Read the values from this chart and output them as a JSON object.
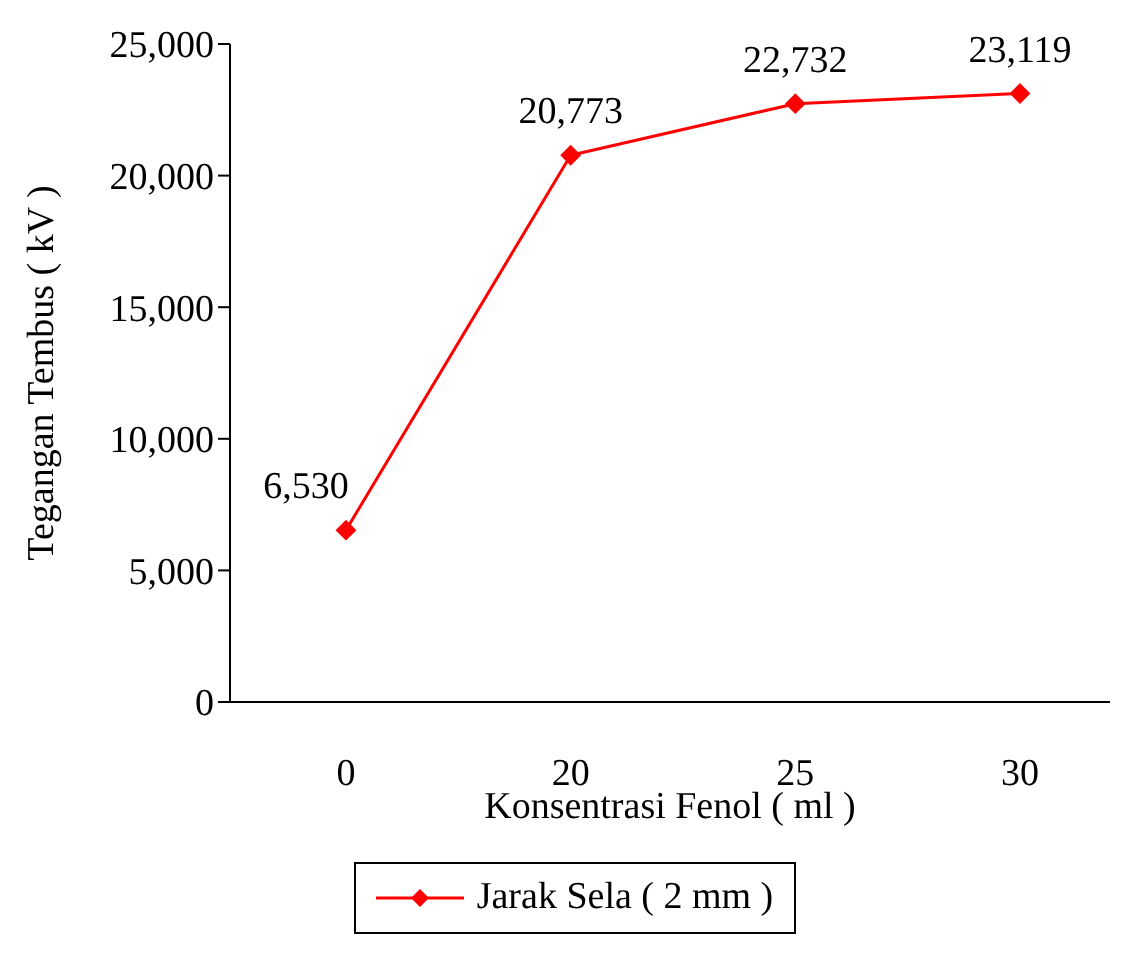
{
  "chart_data": {
    "type": "line",
    "xlabel": "Konsentrasi Fenol ( ml )",
    "ylabel": "Tegangan Tembus ( kV )",
    "categories": [
      "0",
      "20",
      "25",
      "30"
    ],
    "series": [
      {
        "name": "Jarak Sela ( 2 mm )",
        "color": "#ff0000",
        "values": [
          6530,
          20773,
          22732,
          23119
        ],
        "value_labels": [
          "6,530",
          "20,773",
          "22,732",
          "23,119"
        ]
      }
    ],
    "ylim": [
      0,
      25000
    ],
    "yticks": [
      0,
      {
        "value": 5000,
        "label": "5,000"
      },
      {
        "value": 10000,
        "label": "10,000"
      },
      {
        "value": 15000,
        "label": "15,000"
      },
      {
        "value": 20000,
        "label": "20,000"
      },
      {
        "value": 25000,
        "label": "25,000"
      }
    ],
    "marker": "diamond",
    "line_style": "solid",
    "grid": false,
    "legend": "bottom"
  }
}
